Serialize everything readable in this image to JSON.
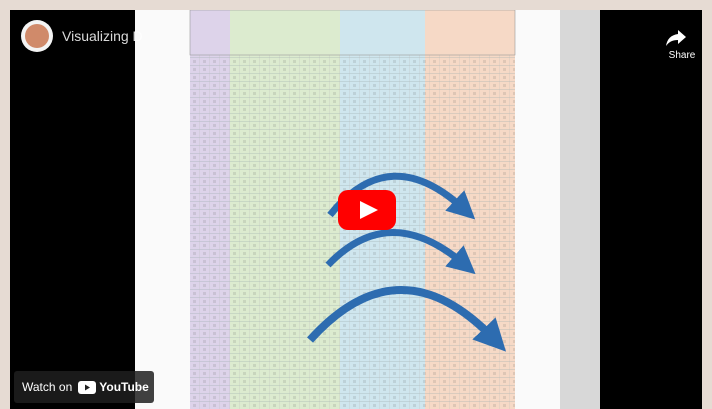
{
  "video": {
    "title": "Visualizing D",
    "share": "Share",
    "watch_on": "Watch on",
    "brand": "YouTube"
  }
}
